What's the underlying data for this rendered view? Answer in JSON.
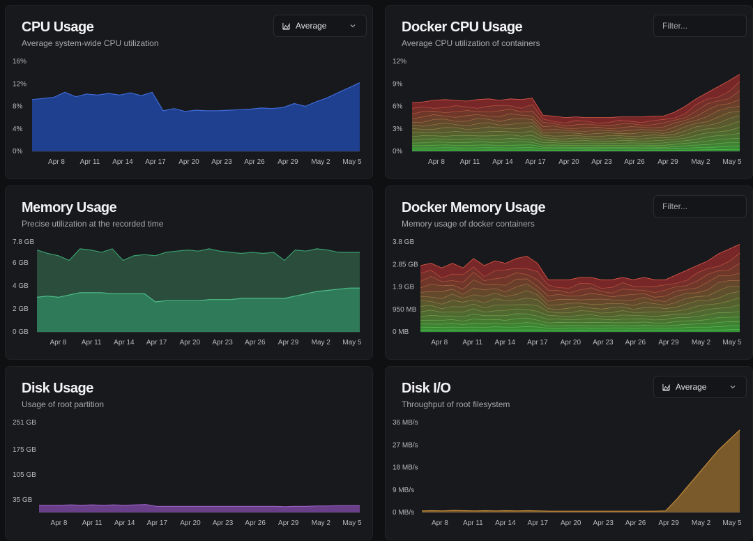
{
  "cards": {
    "cpu": {
      "title": "CPU Usage",
      "subtitle": "Average system-wide CPU utilization",
      "select_value": "Average"
    },
    "docker_cpu": {
      "title": "Docker CPU Usage",
      "subtitle": "Average CPU utilization of containers",
      "filter_placeholder": "Filter..."
    },
    "memory": {
      "title": "Memory Usage",
      "subtitle": "Precise utilization at the recorded time"
    },
    "docker_memory": {
      "title": "Docker Memory Usage",
      "subtitle": "Memory usage of docker containers",
      "filter_placeholder": "Filter..."
    },
    "disk": {
      "title": "Disk Usage",
      "subtitle": "Usage of root partition"
    },
    "disk_io": {
      "title": "Disk I/O",
      "subtitle": "Throughput of root filesystem",
      "select_value": "Average"
    }
  },
  "colors": {
    "cpu_fill": "#1f3f8f",
    "cpu_line": "#3f6bd6",
    "mem_fill": "#2a4d3c",
    "mem_line": "#3a9d70",
    "mem_used_fill": "#2f7a58",
    "disk_fill": "#6a3f8a",
    "disk_line": "#9a5fc4",
    "io_fill": "#7a5a2a",
    "io_line": "#c48a3a",
    "docker_top": "#8a2a2a",
    "docker_bottom": "#3aa83a"
  },
  "chart_data": [
    {
      "id": "cpu",
      "type": "area",
      "x": [
        "Apr 6",
        "Apr 7",
        "Apr 8",
        "Apr 9",
        "Apr 10",
        "Apr 11",
        "Apr 12",
        "Apr 13",
        "Apr 14",
        "Apr 15",
        "Apr 16",
        "Apr 17",
        "Apr 18",
        "Apr 19",
        "Apr 20",
        "Apr 21",
        "Apr 22",
        "Apr 23",
        "Apr 24",
        "Apr 25",
        "Apr 26",
        "Apr 27",
        "Apr 28",
        "Apr 29",
        "Apr 30",
        "May 1",
        "May 2",
        "May 3",
        "May 4",
        "May 5",
        "May 6"
      ],
      "x_ticks": [
        "Apr 8",
        "Apr 11",
        "Apr 14",
        "Apr 17",
        "Apr 20",
        "Apr 23",
        "Apr 26",
        "Apr 29",
        "May 2",
        "May 5"
      ],
      "y_ticks": [
        "0%",
        "4%",
        "8%",
        "12%",
        "16%"
      ],
      "ylim": [
        0,
        16
      ],
      "series": [
        {
          "values": [
            9.2,
            9.4,
            9.6,
            10.5,
            9.7,
            10.2,
            10.0,
            10.3,
            10.0,
            10.4,
            9.9,
            10.5,
            7.2,
            7.6,
            7.1,
            7.3,
            7.2,
            7.2,
            7.3,
            7.4,
            7.5,
            7.7,
            7.6,
            7.8,
            8.5,
            8.0,
            8.8,
            9.5,
            10.4,
            11.3,
            12.2
          ]
        }
      ]
    },
    {
      "id": "docker_cpu",
      "type": "area",
      "stacked": true,
      "x_ticks": [
        "Apr 8",
        "Apr 11",
        "Apr 14",
        "Apr 17",
        "Apr 20",
        "Apr 23",
        "Apr 26",
        "Apr 29",
        "May 2",
        "May 5"
      ],
      "y_ticks": [
        "0%",
        "3%",
        "6%",
        "9%",
        "12%"
      ],
      "ylim": [
        0,
        12
      ],
      "series": [
        {
          "values": [
            6.5,
            6.6,
            6.8,
            6.9,
            6.8,
            6.7,
            6.9,
            7.0,
            6.8,
            7.0,
            6.9,
            7.1,
            4.8,
            4.7,
            4.5,
            4.6,
            4.5,
            4.5,
            4.5,
            4.6,
            4.6,
            4.6,
            4.7,
            4.7,
            5.2,
            6.0,
            7.0,
            7.8,
            8.6,
            9.4,
            10.3
          ]
        }
      ]
    },
    {
      "id": "memory",
      "type": "area",
      "x_ticks": [
        "Apr 8",
        "Apr 11",
        "Apr 14",
        "Apr 17",
        "Apr 20",
        "Apr 23",
        "Apr 26",
        "Apr 29",
        "May 2",
        "May 5"
      ],
      "y_ticks": [
        "0 GB",
        "2 GB",
        "4 GB",
        "6 GB",
        "7.8 GB"
      ],
      "ylim": [
        0,
        7.8
      ],
      "series": [
        {
          "name": "total",
          "values": [
            7.1,
            6.8,
            6.6,
            6.2,
            7.2,
            7.1,
            6.9,
            7.2,
            6.2,
            6.6,
            6.7,
            6.6,
            6.9,
            7.0,
            7.1,
            7.0,
            7.2,
            7.0,
            6.9,
            6.8,
            6.9,
            6.8,
            6.9,
            6.2,
            7.1,
            7.0,
            7.2,
            7.1,
            6.9,
            6.9,
            6.9
          ]
        },
        {
          "name": "used",
          "values": [
            3.0,
            3.1,
            3.0,
            3.2,
            3.4,
            3.4,
            3.4,
            3.3,
            3.3,
            3.3,
            3.3,
            2.6,
            2.7,
            2.7,
            2.7,
            2.7,
            2.8,
            2.8,
            2.8,
            2.9,
            2.9,
            2.9,
            2.9,
            2.9,
            3.1,
            3.3,
            3.5,
            3.6,
            3.7,
            3.8,
            3.8
          ]
        }
      ]
    },
    {
      "id": "docker_memory",
      "type": "area",
      "stacked": true,
      "x_ticks": [
        "Apr 8",
        "Apr 11",
        "Apr 14",
        "Apr 17",
        "Apr 20",
        "Apr 23",
        "Apr 26",
        "Apr 29",
        "May 2",
        "May 5"
      ],
      "y_ticks": [
        "0 MB",
        "950 MB",
        "1.9 GB",
        "2.85 GB",
        "3.8 GB"
      ],
      "ylim": [
        0,
        3.8
      ],
      "series": [
        {
          "values": [
            2.8,
            2.9,
            2.7,
            2.9,
            2.7,
            3.1,
            2.8,
            3.0,
            2.9,
            3.1,
            3.2,
            2.9,
            2.2,
            2.2,
            2.2,
            2.3,
            2.3,
            2.2,
            2.2,
            2.3,
            2.2,
            2.3,
            2.2,
            2.2,
            2.4,
            2.6,
            2.8,
            3.0,
            3.3,
            3.5,
            3.7
          ]
        }
      ]
    },
    {
      "id": "disk",
      "type": "area",
      "x_ticks": [
        "Apr 8",
        "Apr 11",
        "Apr 14",
        "Apr 17",
        "Apr 20",
        "Apr 23",
        "Apr 26",
        "Apr 29",
        "May 2",
        "May 5"
      ],
      "y_ticks": [
        "35 GB",
        "105 GB",
        "175 GB",
        "251 GB"
      ],
      "ylim": [
        0,
        251
      ],
      "series": [
        {
          "values": [
            20,
            20,
            20,
            21,
            20,
            21,
            20,
            21,
            20,
            21,
            22,
            17,
            17,
            17,
            17,
            17,
            17,
            17,
            17,
            17,
            17,
            17,
            17,
            16,
            17,
            17,
            18,
            18,
            19,
            19,
            19
          ]
        }
      ]
    },
    {
      "id": "disk_io",
      "type": "area",
      "x_ticks": [
        "Apr 8",
        "Apr 11",
        "Apr 14",
        "Apr 17",
        "Apr 20",
        "Apr 23",
        "Apr 26",
        "Apr 29",
        "May 2",
        "May 5"
      ],
      "y_ticks": [
        "0 MB/s",
        "9 MB/s",
        "18 MB/s",
        "27 MB/s",
        "36 MB/s"
      ],
      "ylim": [
        0,
        36
      ],
      "series": [
        {
          "values": [
            0.6,
            0.7,
            0.6,
            0.8,
            0.7,
            0.6,
            0.7,
            0.6,
            0.7,
            0.6,
            0.7,
            0.6,
            0.5,
            0.5,
            0.5,
            0.5,
            0.5,
            0.5,
            0.5,
            0.5,
            0.5,
            0.5,
            0.5,
            0.6,
            5,
            10,
            15,
            20,
            25,
            29,
            33
          ]
        }
      ]
    }
  ]
}
